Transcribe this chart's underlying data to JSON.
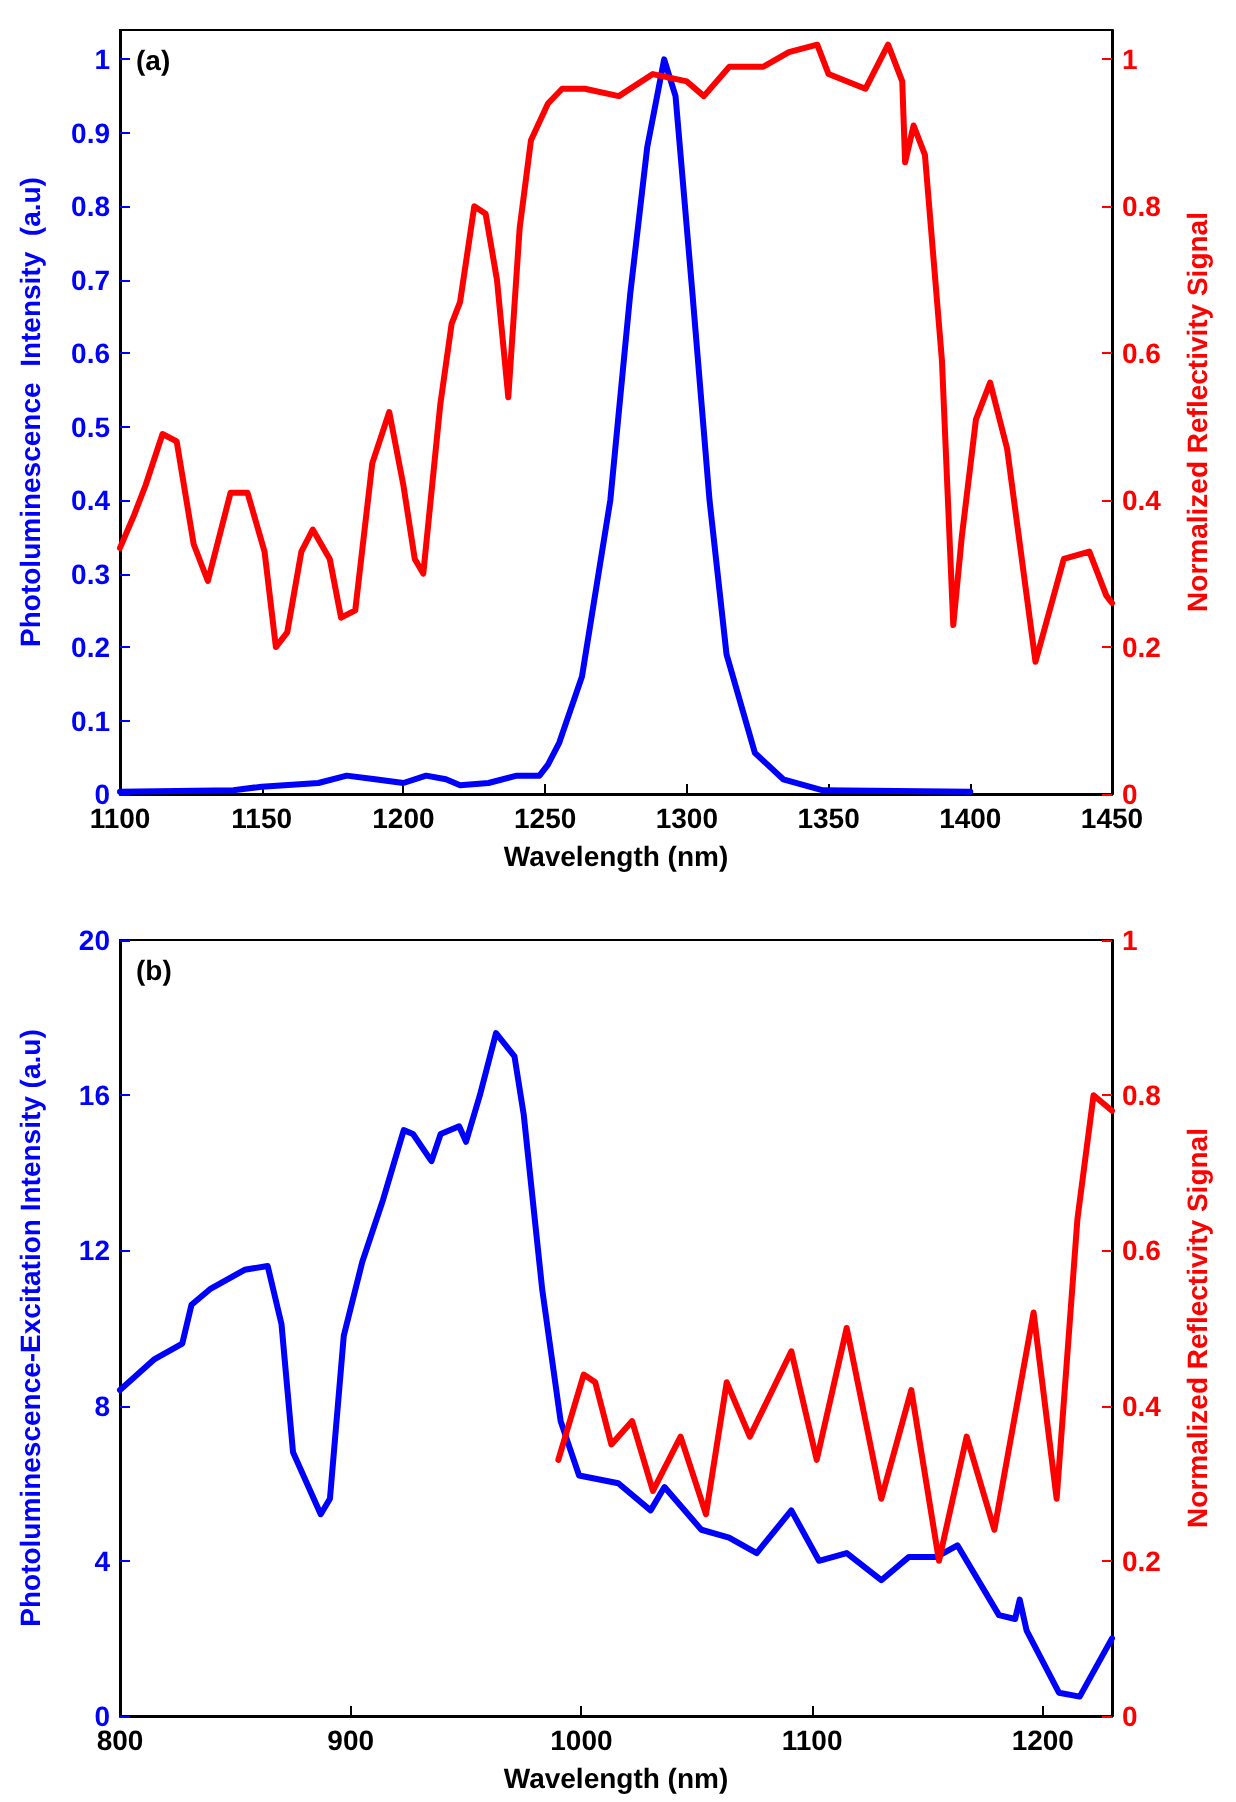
{
  "chart_data": [
    {
      "type": "line",
      "annotations": [
        "(a)"
      ],
      "xlabel": "Wavelength (nm)",
      "ylabel": "Photoluminescence  Intensity  (a.u)",
      "y2label": "Normalized Reflectivity Signal",
      "xlim": [
        1100,
        1450
      ],
      "xticks": [
        1100,
        1150,
        1200,
        1250,
        1300,
        1350,
        1400,
        1450
      ],
      "ylim": [
        0,
        1.04
      ],
      "yticks": [
        0,
        0.1,
        0.2,
        0.3,
        0.4,
        0.5,
        0.6,
        0.7,
        0.8,
        0.9,
        1
      ],
      "y2lim": [
        0,
        1.04
      ],
      "y2ticks": [
        0,
        0.2,
        0.4,
        0.6,
        0.8,
        1
      ],
      "marker": "none",
      "line_style": "solid",
      "series": [
        {
          "color": "#0000ff",
          "x": [
            1100,
            1140,
            1150,
            1170,
            1180,
            1190,
            1200,
            1208,
            1215,
            1220,
            1230,
            1240,
            1248,
            1251,
            1255,
            1263,
            1273,
            1280,
            1286,
            1292,
            1296,
            1302,
            1308,
            1314,
            1324,
            1334,
            1348,
            1400
          ],
          "values": [
            0.003,
            0.005,
            0.01,
            0.015,
            0.025,
            0.02,
            0.015,
            0.025,
            0.02,
            0.012,
            0.015,
            0.025,
            0.025,
            0.04,
            0.07,
            0.16,
            0.4,
            0.68,
            0.88,
            1.0,
            0.95,
            0.68,
            0.4,
            0.19,
            0.056,
            0.02,
            0.005,
            0.003
          ]
        },
        {
          "color": "#ff0000",
          "axis": "y2",
          "x": [
            1100,
            1105,
            1109,
            1115,
            1120,
            1126,
            1131,
            1139,
            1145,
            1151,
            1155,
            1159,
            1164,
            1168,
            1174,
            1178,
            1183,
            1189,
            1195,
            1200,
            1204,
            1207,
            1213,
            1217,
            1220,
            1225,
            1229,
            1233,
            1237,
            1241,
            1245,
            1251,
            1256,
            1264,
            1276,
            1288,
            1300,
            1306,
            1315,
            1327,
            1336,
            1346,
            1350,
            1363,
            1371,
            1376,
            1377,
            1380,
            1384,
            1390,
            1394,
            1397,
            1402,
            1407,
            1413,
            1423,
            1433,
            1442,
            1448,
            1450
          ],
          "values": [
            0.335,
            0.38,
            0.42,
            0.49,
            0.48,
            0.34,
            0.29,
            0.41,
            0.41,
            0.33,
            0.2,
            0.22,
            0.33,
            0.36,
            0.32,
            0.24,
            0.25,
            0.45,
            0.52,
            0.42,
            0.32,
            0.3,
            0.53,
            0.64,
            0.67,
            0.8,
            0.79,
            0.7,
            0.54,
            0.77,
            0.89,
            0.94,
            0.96,
            0.96,
            0.95,
            0.98,
            0.97,
            0.95,
            0.99,
            0.99,
            1.01,
            1.02,
            0.98,
            0.96,
            1.02,
            0.97,
            0.86,
            0.91,
            0.87,
            0.59,
            0.23,
            0.35,
            0.51,
            0.56,
            0.47,
            0.18,
            0.32,
            0.33,
            0.27,
            0.26
          ]
        }
      ]
    },
    {
      "type": "line",
      "annotations": [
        "(b)"
      ],
      "xlabel": "Wavelength (nm)",
      "ylabel": "Photoluminescence-Excitation Intensity (a.u)",
      "y2label": "Normalized Reflectivity Signal",
      "xlim": [
        800,
        1230
      ],
      "xticks": [
        800,
        900,
        1000,
        1100,
        1200
      ],
      "ylim": [
        0,
        20
      ],
      "yticks": [
        0,
        4,
        8,
        12,
        16,
        20
      ],
      "y2lim": [
        0,
        1
      ],
      "y2ticks": [
        0,
        0.2,
        0.4,
        0.6,
        0.8,
        1
      ],
      "marker": "none",
      "line_style": "solid",
      "series": [
        {
          "color": "#0000ff",
          "x": [
            800,
            815,
            827,
            831,
            839,
            854,
            864,
            870,
            875,
            881,
            887,
            891,
            897,
            905,
            914,
            923,
            927,
            935,
            939,
            947,
            950,
            956,
            963,
            971,
            975,
            983,
            991,
            999,
            1016,
            1030,
            1036,
            1052,
            1064,
            1076,
            1091,
            1103,
            1115,
            1130,
            1142,
            1154,
            1163,
            1181,
            1188,
            1190,
            1193,
            1207,
            1216,
            1230
          ],
          "values": [
            8.4,
            9.2,
            9.6,
            10.6,
            11.0,
            11.5,
            11.6,
            10.1,
            6.8,
            6.0,
            5.2,
            5.6,
            9.8,
            11.7,
            13.3,
            15.1,
            15.0,
            14.3,
            15.0,
            15.2,
            14.8,
            16.0,
            17.6,
            17.0,
            15.5,
            11.0,
            7.6,
            6.2,
            6.0,
            5.3,
            5.9,
            4.8,
            4.6,
            4.2,
            5.3,
            4.0,
            4.2,
            3.5,
            4.1,
            4.1,
            4.4,
            2.6,
            2.5,
            3.0,
            2.2,
            0.6,
            0.5,
            2.0
          ]
        },
        {
          "color": "#ff0000",
          "axis": "y2",
          "x": [
            990,
            996,
            1001,
            1006,
            1013,
            1022,
            1031,
            1043,
            1054,
            1063,
            1073,
            1091,
            1102,
            1115,
            1130,
            1143,
            1155,
            1167,
            1179,
            1196,
            1206,
            1215,
            1222,
            1230
          ],
          "values": [
            0.33,
            0.39,
            0.44,
            0.43,
            0.35,
            0.38,
            0.29,
            0.36,
            0.26,
            0.43,
            0.36,
            0.47,
            0.33,
            0.5,
            0.28,
            0.42,
            0.2,
            0.36,
            0.24,
            0.52,
            0.28,
            0.64,
            0.8,
            0.78
          ]
        }
      ]
    }
  ]
}
